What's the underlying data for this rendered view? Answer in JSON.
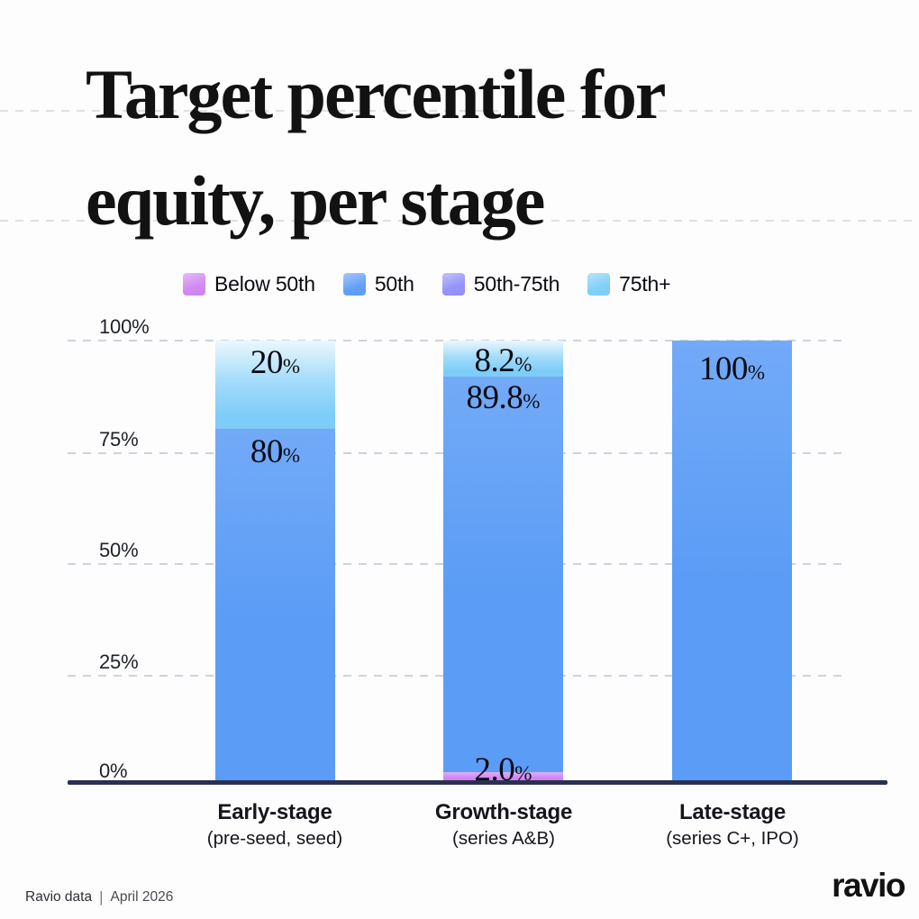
{
  "title": {
    "line1": "Target percentile for",
    "line2": "equity, per stage"
  },
  "legend": {
    "items": [
      {
        "label": "Below 50th",
        "color": "#D083F2"
      },
      {
        "label": "50th",
        "color": "#5B9CF6"
      },
      {
        "label": "50th-75th",
        "color": "#8F8FF7"
      },
      {
        "label": "75th+",
        "color": "#7DCDF8"
      }
    ]
  },
  "chart_data": {
    "type": "bar",
    "stacked": true,
    "title": "Target percentile for equity, per stage",
    "xlabel": "",
    "ylabel": "",
    "ylim": [
      0,
      100
    ],
    "y_ticks": [
      "100%",
      "75%",
      "50%",
      "25%",
      "0%"
    ],
    "grid": "dashed-horizontal",
    "legend_position": "top",
    "categories": [
      {
        "label": "Early-stage",
        "sublabel": "(pre-seed, seed)"
      },
      {
        "label": "Growth-stage",
        "sublabel": "(series A&B)"
      },
      {
        "label": "Late-stage",
        "sublabel": "(series C+, IPO)"
      }
    ],
    "series": [
      {
        "name": "Below 50th",
        "color": "#D083F2",
        "values": [
          0,
          2.0,
          0
        ]
      },
      {
        "name": "50th",
        "color": "#5B9CF6",
        "values": [
          80,
          89.8,
          100
        ]
      },
      {
        "name": "50th-75th",
        "color": "#8F8FF7",
        "values": [
          0,
          0,
          0
        ]
      },
      {
        "name": "75th+",
        "color": "#7DCDF8",
        "values": [
          20,
          8.2,
          0
        ]
      }
    ],
    "unit": "%",
    "segment_labels": {
      "early_75plus": "20",
      "early_50th": "80",
      "growth_75plus": "8.2",
      "growth_50th": "89.8",
      "growth_below50": "2.0",
      "late_50th": "100"
    },
    "colors": {
      "axis": "#2B3052",
      "gridline": "#CDD2E2",
      "below_50th": "#D083F2",
      "p50": "#5B9CF6",
      "p50_75": "#8F8FF7",
      "p75_plus": "#7DCDF8"
    }
  },
  "footer": {
    "source": "Ravio data",
    "separator": "|",
    "date": "April 2026",
    "logo": "ravio"
  }
}
